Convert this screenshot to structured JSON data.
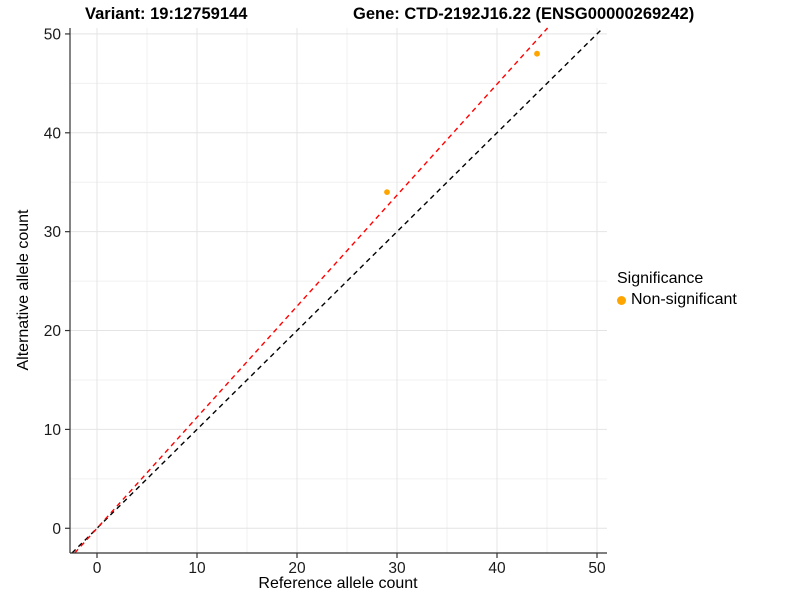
{
  "chart_data": {
    "type": "scatter",
    "titles": {
      "variant": "Variant: 19:12759144",
      "gene": "Gene: CTD-2192J16.22 (ENSG00000269242)"
    },
    "xlabel": "Reference allele count",
    "ylabel": "Alternative allele count",
    "xlim": [
      -2.7,
      51.0
    ],
    "ylim": [
      -2.5,
      50.6
    ],
    "x_ticks": [
      0,
      10,
      20,
      30,
      40,
      50
    ],
    "y_ticks": [
      0,
      10,
      20,
      30,
      40,
      50
    ],
    "x_minor_ticks": [
      5,
      15,
      25,
      35,
      45
    ],
    "y_minor_ticks": [
      5,
      15,
      25,
      35,
      45
    ],
    "grid": true,
    "series": [
      {
        "name": "Non-significant",
        "type": "points",
        "color": "#FFA500",
        "points": [
          {
            "x": 29,
            "y": 34
          },
          {
            "x": 44,
            "y": 48
          }
        ]
      }
    ],
    "lines": [
      {
        "name": "identity-line",
        "slope": 1.0,
        "intercept": 0,
        "color": "#000000",
        "style": "dashed"
      },
      {
        "name": "fitted-ratio-line",
        "slope": 1.123,
        "intercept": 0,
        "color": "#FF0000",
        "style": "dashed"
      }
    ],
    "legend": {
      "position": "right",
      "title": "Significance",
      "items": [
        {
          "label": "Non-significant",
          "color": "#FFA500"
        }
      ]
    },
    "style": {
      "grid_major_color": "#E4E4E4",
      "grid_minor_color": "#F0F0F0",
      "axis_line_color": "#333333",
      "tick_label_color": "#1a1a1a"
    }
  }
}
